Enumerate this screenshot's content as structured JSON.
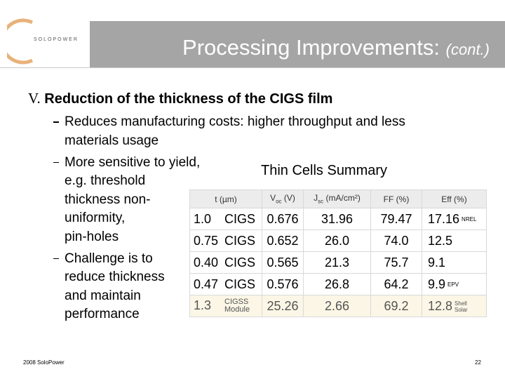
{
  "header": {
    "logo": "SOLOPOWER",
    "title": "Processing Improvements:",
    "title_suffix": "(cont.)"
  },
  "section": {
    "number": "V.",
    "heading": "Reduction of the thickness of the CIGS film"
  },
  "bullets": [
    {
      "lines": [
        "Reduces manufacturing costs: higher throughput and less",
        "materials usage"
      ]
    },
    {
      "lines": [
        "More sensitive to yield,",
        "e.g. threshold",
        "thickness non-",
        "uniformity,",
        "pin-holes"
      ]
    },
    {
      "lines": [
        "Challenge is to",
        "reduce thickness",
        "and maintain",
        "performance"
      ]
    }
  ],
  "table": {
    "title": "Thin Cells Summary",
    "columns": [
      {
        "text": "t (µm)"
      },
      {
        "text": "V",
        "sub": "oc",
        "unit": " (V)"
      },
      {
        "text": "J",
        "sub": "sc",
        "unit": " (mA/cm²)"
      },
      {
        "text": "FF (%)"
      },
      {
        "text": "Eff (%)"
      }
    ],
    "rows": [
      {
        "t": "1.0",
        "material": "CIGS",
        "voc": "0.676",
        "jsc": "31.96",
        "ff": "79.47",
        "eff": "17.16",
        "source": [
          "NREL"
        ]
      },
      {
        "t": "0.75",
        "material": "CIGS",
        "voc": "0.652",
        "jsc": "26.0",
        "ff": "74.0",
        "eff": "12.5"
      },
      {
        "t": "0.40",
        "material": "CIGS",
        "voc": "0.565",
        "jsc": "21.3",
        "ff": "75.7",
        "eff": "9.1"
      },
      {
        "t": "0.47",
        "material": "CIGS",
        "voc": "0.576",
        "jsc": "26.8",
        "ff": "64.2",
        "eff": "9.9",
        "source": [
          "EPV"
        ]
      },
      {
        "t": "1.3",
        "material": [
          "CIGSS",
          "Module"
        ],
        "voc": "25.26",
        "jsc": "2.66",
        "ff": "69.2",
        "eff": "12.8",
        "source": [
          "Shell",
          "Solar"
        ]
      }
    ]
  },
  "footer": {
    "copyright": "2008 SoloPower",
    "page": "22"
  }
}
